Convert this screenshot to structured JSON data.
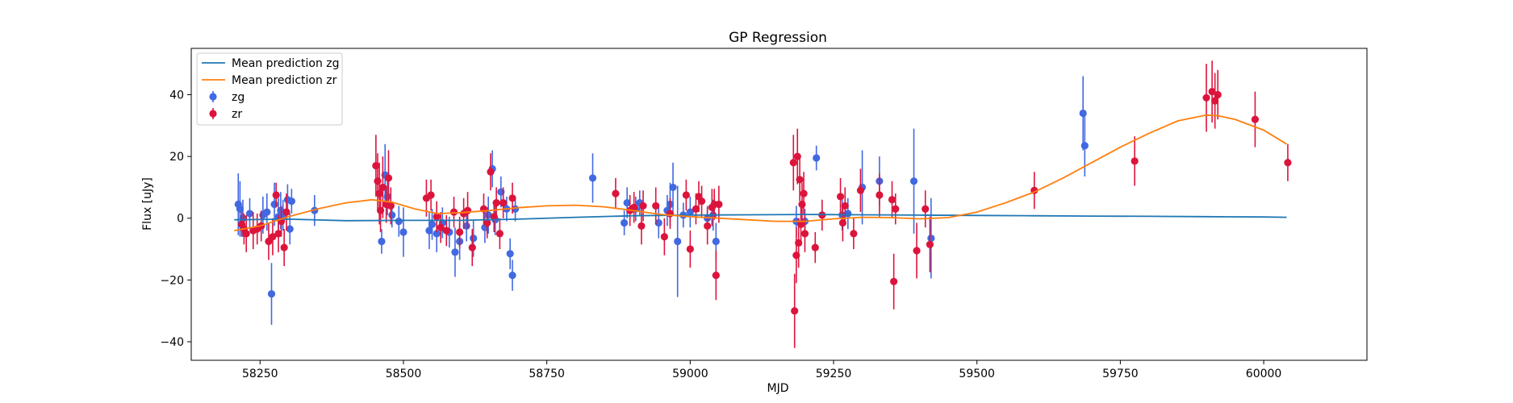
{
  "chart_data": {
    "type": "scatter",
    "title": "GP Regression",
    "xlabel": "MJD",
    "ylabel": "Flux [uJy]",
    "xlim": [
      58130,
      60180
    ],
    "ylim": [
      -46,
      55
    ],
    "x_ticks": [
      58250,
      58500,
      58750,
      59000,
      59250,
      59500,
      59750,
      60000
    ],
    "x_tick_labels": [
      "58250",
      "58500",
      "58750",
      "59000",
      "59250",
      "59500",
      "59750",
      "60000"
    ],
    "y_ticks": [
      -40,
      -20,
      0,
      20,
      40
    ],
    "y_tick_labels": [
      "−40",
      "−20",
      "0",
      "20",
      "40"
    ],
    "grid": false,
    "legend_position": "top-left",
    "legend": [
      {
        "label": "Mean prediction zg",
        "kind": "line",
        "color": "#1f77b4"
      },
      {
        "label": "Mean prediction zr",
        "kind": "line",
        "color": "#ff7f0e"
      },
      {
        "label": "zg",
        "kind": "errorbar",
        "color": "#4169e1"
      },
      {
        "label": "zr",
        "kind": "errorbar",
        "color": "#dc143c"
      }
    ],
    "lines": [
      {
        "name": "Mean prediction zg",
        "color": "#1f77b4",
        "points": [
          [
            58205,
            -0.5
          ],
          [
            58300,
            -0.3
          ],
          [
            58400,
            -0.8
          ],
          [
            58500,
            -0.7
          ],
          [
            58600,
            -0.7
          ],
          [
            58700,
            -0.3
          ],
          [
            58800,
            0.3
          ],
          [
            58900,
            0.8
          ],
          [
            59000,
            1.0
          ],
          [
            59100,
            1.1
          ],
          [
            59200,
            1.2
          ],
          [
            59300,
            1.1
          ],
          [
            59400,
            1.0
          ],
          [
            59500,
            0.9
          ],
          [
            59600,
            0.8
          ],
          [
            59700,
            0.7
          ],
          [
            59800,
            0.6
          ],
          [
            59900,
            0.5
          ],
          [
            60000,
            0.4
          ],
          [
            60040,
            0.3
          ]
        ]
      },
      {
        "name": "Mean prediction zr",
        "color": "#ff7f0e",
        "points": [
          [
            58205,
            -4.0
          ],
          [
            58250,
            -2.5
          ],
          [
            58300,
            0.5
          ],
          [
            58350,
            3.0
          ],
          [
            58400,
            5.0
          ],
          [
            58445,
            6.0
          ],
          [
            58480,
            5.2
          ],
          [
            58520,
            3.0
          ],
          [
            58560,
            1.5
          ],
          [
            58600,
            1.8
          ],
          [
            58650,
            2.5
          ],
          [
            58700,
            3.4
          ],
          [
            58750,
            4.0
          ],
          [
            58800,
            4.2
          ],
          [
            58850,
            3.7
          ],
          [
            58900,
            2.5
          ],
          [
            58950,
            1.2
          ],
          [
            59000,
            0.5
          ],
          [
            59050,
            0.0
          ],
          [
            59100,
            -0.5
          ],
          [
            59150,
            -1.0
          ],
          [
            59200,
            -1.0
          ],
          [
            59250,
            -0.2
          ],
          [
            59300,
            0.3
          ],
          [
            59350,
            0.2
          ],
          [
            59400,
            -0.2
          ],
          [
            59450,
            0.2
          ],
          [
            59500,
            2.0
          ],
          [
            59550,
            5.0
          ],
          [
            59600,
            8.5
          ],
          [
            59650,
            13.0
          ],
          [
            59700,
            18.0
          ],
          [
            59750,
            23.0
          ],
          [
            59800,
            27.5
          ],
          [
            59850,
            31.5
          ],
          [
            59900,
            33.4
          ],
          [
            59920,
            33.2
          ],
          [
            59950,
            32.0
          ],
          [
            60000,
            28.5
          ],
          [
            60040,
            24.0
          ]
        ]
      }
    ],
    "series": [
      {
        "name": "zg",
        "color": "#4169e1",
        "points": [
          [
            58212,
            4.5,
            10
          ],
          [
            58215,
            3.0,
            9
          ],
          [
            58220,
            0.0,
            6
          ],
          [
            58232,
            1.5,
            5
          ],
          [
            58255,
            1.0,
            6
          ],
          [
            58262,
            2.0,
            6
          ],
          [
            58270,
            -24.5,
            10
          ],
          [
            58275,
            4.5,
            7
          ],
          [
            58282,
            0.5,
            6
          ],
          [
            58286,
            2.5,
            6
          ],
          [
            58290,
            1.0,
            5
          ],
          [
            58298,
            6.0,
            5
          ],
          [
            58302,
            -3.5,
            5
          ],
          [
            58305,
            5.5,
            4
          ],
          [
            58345,
            2.5,
            5
          ],
          [
            58462,
            -7.5,
            4
          ],
          [
            58468,
            14.0,
            10
          ],
          [
            58472,
            7.0,
            6
          ],
          [
            58480,
            1.0,
            4
          ],
          [
            58492,
            -1.0,
            5
          ],
          [
            58500,
            -4.5,
            8
          ],
          [
            58545,
            -4.0,
            6
          ],
          [
            58550,
            -2.0,
            5
          ],
          [
            58558,
            -5.0,
            6
          ],
          [
            58568,
            -1.5,
            5
          ],
          [
            58580,
            -4.5,
            5
          ],
          [
            58590,
            -11.0,
            8
          ],
          [
            58598,
            -7.5,
            6
          ],
          [
            58610,
            -2.5,
            5
          ],
          [
            58622,
            -6.5,
            6
          ],
          [
            58642,
            -3.0,
            5
          ],
          [
            58648,
            1.0,
            6
          ],
          [
            58655,
            16.0,
            6
          ],
          [
            58660,
            -0.5,
            5
          ],
          [
            58670,
            8.5,
            5
          ],
          [
            58680,
            3.0,
            4
          ],
          [
            58686,
            -11.5,
            5
          ],
          [
            58690,
            -18.5,
            5
          ],
          [
            58695,
            3.0,
            4
          ],
          [
            58830,
            13.0,
            8
          ],
          [
            58885,
            -1.5,
            4
          ],
          [
            58890,
            5.0,
            5
          ],
          [
            58905,
            3.0,
            4
          ],
          [
            58912,
            5.0,
            4
          ],
          [
            58945,
            -1.5,
            5
          ],
          [
            58960,
            2.5,
            5
          ],
          [
            58965,
            4.5,
            7
          ],
          [
            58970,
            10.0,
            8
          ],
          [
            58978,
            -7.5,
            18
          ],
          [
            58988,
            1.0,
            4
          ],
          [
            59000,
            2.0,
            5
          ],
          [
            59030,
            0.0,
            4
          ],
          [
            59040,
            1.0,
            5
          ],
          [
            59045,
            -7.5,
            6
          ],
          [
            59185,
            -1.0,
            5
          ],
          [
            59200,
            -1.0,
            4
          ],
          [
            59220,
            19.5,
            4
          ],
          [
            59265,
            1.0,
            5
          ],
          [
            59275,
            1.5,
            5
          ],
          [
            59300,
            10.0,
            12
          ],
          [
            59330,
            12.0,
            8
          ],
          [
            59390,
            12.0,
            17
          ],
          [
            59420,
            -6.5,
            13
          ],
          [
            59685,
            34.0,
            12
          ],
          [
            59688,
            23.5,
            10
          ]
        ]
      },
      {
        "name": "zr",
        "color": "#dc143c",
        "points": [
          [
            58218,
            -2.0,
            4
          ],
          [
            58222,
            -3.5,
            5
          ],
          [
            58226,
            -5.0,
            6
          ],
          [
            58238,
            -4.0,
            6
          ],
          [
            58245,
            -3.5,
            5
          ],
          [
            58252,
            -2.5,
            5
          ],
          [
            58265,
            -7.5,
            6
          ],
          [
            58272,
            -6.0,
            6
          ],
          [
            58278,
            7.5,
            4
          ],
          [
            58282,
            -5.0,
            6
          ],
          [
            58287,
            -1.0,
            5
          ],
          [
            58292,
            -9.5,
            6
          ],
          [
            58296,
            2.0,
            6
          ],
          [
            58452,
            17.0,
            10
          ],
          [
            58455,
            12.0,
            9
          ],
          [
            58458,
            8.0,
            10
          ],
          [
            58460,
            2.5,
            7
          ],
          [
            58464,
            10.0,
            10
          ],
          [
            58470,
            4.5,
            6
          ],
          [
            58474,
            13.0,
            9
          ],
          [
            58478,
            4.0,
            6
          ],
          [
            58540,
            6.5,
            6
          ],
          [
            58548,
            7.5,
            5
          ],
          [
            58558,
            0.5,
            5
          ],
          [
            58565,
            -3.0,
            5
          ],
          [
            58575,
            -4.0,
            5
          ],
          [
            58588,
            2.0,
            5
          ],
          [
            58598,
            -4.5,
            5
          ],
          [
            58605,
            1.5,
            5
          ],
          [
            58612,
            2.5,
            6
          ],
          [
            58620,
            -9.5,
            6
          ],
          [
            58640,
            3.0,
            5
          ],
          [
            58646,
            -1.5,
            5
          ],
          [
            58652,
            15.0,
            6
          ],
          [
            58658,
            0.5,
            5
          ],
          [
            58662,
            5.0,
            5
          ],
          [
            58668,
            -5.0,
            5
          ],
          [
            58674,
            5.0,
            5
          ],
          [
            58690,
            6.5,
            5
          ],
          [
            58870,
            8.0,
            5
          ],
          [
            58895,
            2.5,
            5
          ],
          [
            58902,
            3.5,
            5
          ],
          [
            58915,
            -2.5,
            6
          ],
          [
            58918,
            4.0,
            5
          ],
          [
            58940,
            4.0,
            6
          ],
          [
            58955,
            -6.0,
            6
          ],
          [
            58965,
            1.5,
            5
          ],
          [
            58993,
            7.5,
            5
          ],
          [
            59000,
            -10.0,
            6
          ],
          [
            59010,
            3.0,
            5
          ],
          [
            59015,
            7.0,
            5
          ],
          [
            59020,
            5.5,
            5
          ],
          [
            59030,
            -2.5,
            6
          ],
          [
            59038,
            3.5,
            6
          ],
          [
            59042,
            4.5,
            5
          ],
          [
            59045,
            -18.5,
            8
          ],
          [
            59050,
            4.5,
            6
          ],
          [
            59180,
            18.0,
            9
          ],
          [
            59182,
            -30.0,
            12
          ],
          [
            59185,
            -12.0,
            9
          ],
          [
            59187,
            20.0,
            9
          ],
          [
            59189,
            -8.0,
            8
          ],
          [
            59191,
            12.5,
            7
          ],
          [
            59193,
            -2.0,
            7
          ],
          [
            59195,
            4.5,
            7
          ],
          [
            59198,
            8.0,
            7
          ],
          [
            59200,
            -5.0,
            6
          ],
          [
            59218,
            -9.5,
            5
          ],
          [
            59230,
            1.0,
            5
          ],
          [
            59262,
            7.0,
            6
          ],
          [
            59266,
            -1.5,
            6
          ],
          [
            59270,
            4.0,
            6
          ],
          [
            59285,
            -5.0,
            5
          ],
          [
            59297,
            9.0,
            7
          ],
          [
            59330,
            7.5,
            7
          ],
          [
            59352,
            6.0,
            6
          ],
          [
            59355,
            -20.5,
            9
          ],
          [
            59358,
            3.0,
            5
          ],
          [
            59395,
            -10.5,
            9
          ],
          [
            59410,
            3.0,
            6
          ],
          [
            59418,
            -8.5,
            9
          ],
          [
            59600,
            9.0,
            6
          ],
          [
            59775,
            18.5,
            8
          ],
          [
            59900,
            39.0,
            11
          ],
          [
            59910,
            41.0,
            10
          ],
          [
            59915,
            38.0,
            9
          ],
          [
            59920,
            40.0,
            8
          ],
          [
            59985,
            32.0,
            9
          ],
          [
            60042,
            18.0,
            6
          ]
        ]
      }
    ]
  }
}
